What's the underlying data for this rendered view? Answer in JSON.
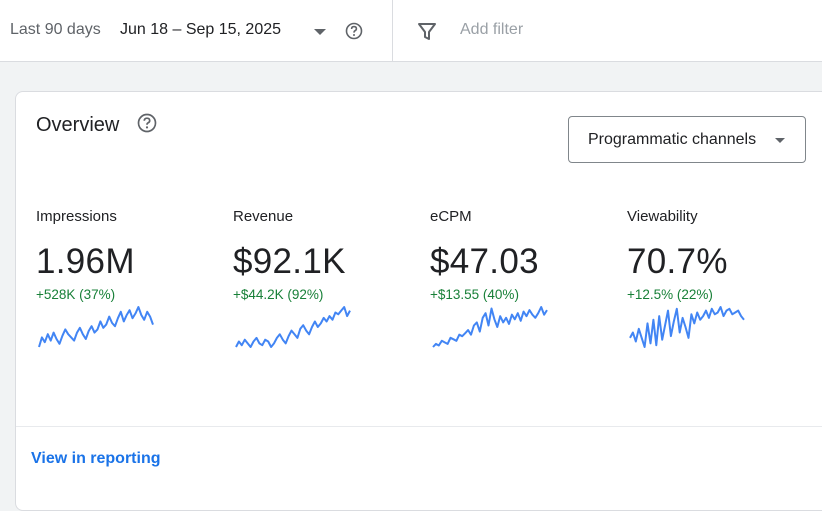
{
  "filters": {
    "range_label": "Last 90 days",
    "range_value": "Jun 18 – Sep 15, 2025",
    "add_filter_placeholder": "Add filter"
  },
  "overview": {
    "title": "Overview",
    "channel_select": "Programmatic channels",
    "view_link": "View in reporting",
    "metrics": [
      {
        "name": "Impressions",
        "value": "1.96M",
        "delta": "+528K (37%)",
        "sparkline": [
          22,
          28,
          25,
          30,
          26,
          31,
          27,
          24,
          29,
          33,
          30,
          28,
          26,
          31,
          34,
          30,
          27,
          32,
          35,
          31,
          33,
          38,
          34,
          36,
          41,
          37,
          35,
          40,
          44,
          38,
          42,
          45,
          40,
          43,
          47,
          42,
          39,
          44,
          41,
          36
        ]
      },
      {
        "name": "Revenue",
        "value": "$92.1K",
        "delta": "+$44.2K (92%)",
        "sparkline": [
          24,
          27,
          25,
          28,
          26,
          24,
          27,
          29,
          26,
          25,
          28,
          27,
          24,
          26,
          29,
          31,
          28,
          26,
          30,
          33,
          31,
          29,
          34,
          36,
          33,
          31,
          35,
          38,
          35,
          37,
          40,
          38,
          41,
          39,
          43,
          42,
          44,
          46,
          41,
          44
        ]
      },
      {
        "name": "eCPM",
        "value": "$47.03",
        "delta": "+$13.55 (40%)",
        "sparkline": [
          22,
          24,
          23,
          26,
          25,
          24,
          28,
          27,
          26,
          30,
          29,
          31,
          33,
          30,
          36,
          38,
          32,
          41,
          44,
          36,
          47,
          40,
          35,
          42,
          38,
          41,
          37,
          43,
          40,
          44,
          39,
          45,
          42,
          46,
          43,
          41,
          44,
          48,
          43,
          46
        ]
      },
      {
        "name": "Viewability",
        "value": "70.7%",
        "delta": "+12.5% (22%)",
        "sparkline": [
          30,
          33,
          28,
          35,
          30,
          25,
          38,
          27,
          40,
          26,
          42,
          29,
          37,
          45,
          31,
          39,
          46,
          33,
          41,
          36,
          30,
          43,
          38,
          44,
          40,
          42,
          45,
          41,
          46,
          43,
          44,
          47,
          42,
          45,
          46,
          43,
          44,
          45,
          42,
          40
        ]
      }
    ]
  },
  "colors": {
    "accent": "#1a73e8",
    "positive": "#188038",
    "spark": "#4285f4"
  },
  "icons": {
    "range_dropdown": "arrow-drop-down-icon",
    "range_help": "help-circle-icon",
    "filter": "filter-funnel-icon",
    "overview_help": "help-circle-icon",
    "channel_dropdown": "arrow-drop-down-icon"
  }
}
